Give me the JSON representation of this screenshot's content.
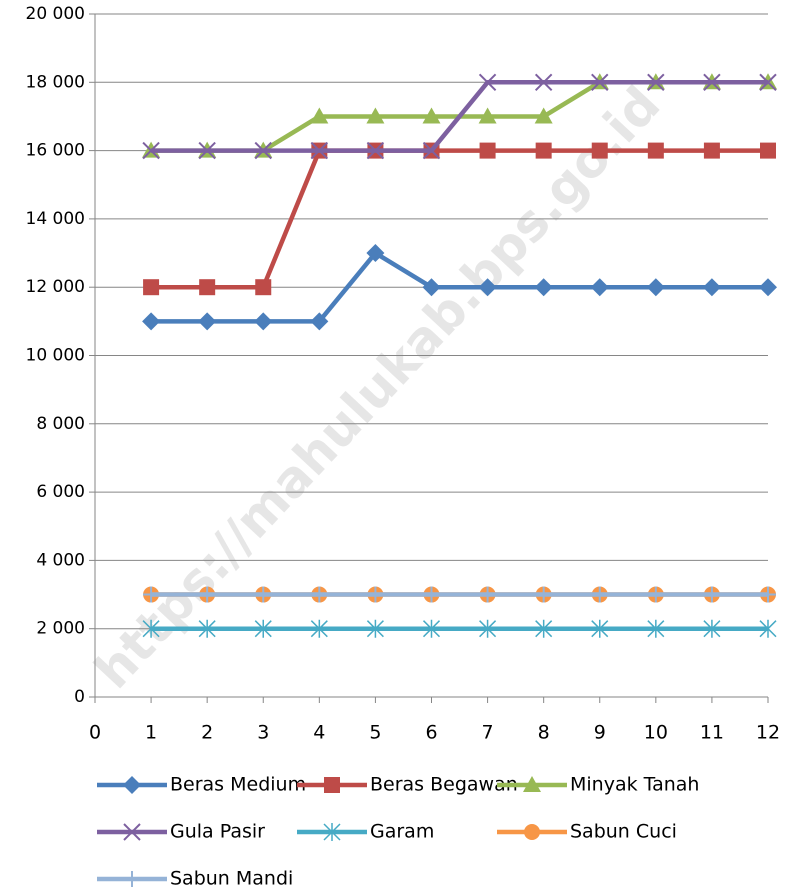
{
  "chart_data": {
    "type": "line",
    "watermark": "https://mahulukab.bps.go.id",
    "x": [
      1,
      2,
      3,
      4,
      5,
      6,
      7,
      8,
      9,
      10,
      11,
      12
    ],
    "xlim": [
      0,
      12
    ],
    "xticks": [
      0,
      1,
      2,
      3,
      4,
      5,
      6,
      7,
      8,
      9,
      10,
      11,
      12
    ],
    "ylim": [
      0,
      20000
    ],
    "yticks": [
      0,
      {
        "value": 2000,
        "label": "2 000"
      },
      {
        "value": 4000,
        "label": "4 000"
      },
      {
        "value": 6000,
        "label": "6 000"
      },
      {
        "value": 8000,
        "label": "8 000"
      },
      {
        "value": 10000,
        "label": "10 000"
      },
      {
        "value": 12000,
        "label": "12 000"
      },
      {
        "value": 14000,
        "label": "14 000"
      },
      {
        "value": 16000,
        "label": "16 000"
      },
      {
        "value": 18000,
        "label": "18 000"
      },
      {
        "value": 20000,
        "label": "20 000"
      }
    ],
    "grid": true,
    "legend": "bottom",
    "series": [
      {
        "name": "Beras Medium",
        "color": "#4a7ebb",
        "marker": "diamond",
        "values": [
          11000,
          11000,
          11000,
          11000,
          13000,
          12000,
          12000,
          12000,
          12000,
          12000,
          12000,
          12000
        ]
      },
      {
        "name": "Beras Begawan",
        "color": "#be4b48",
        "marker": "square",
        "values": [
          12000,
          12000,
          12000,
          16000,
          16000,
          16000,
          16000,
          16000,
          16000,
          16000,
          16000,
          16000
        ]
      },
      {
        "name": "Minyak Tanah",
        "color": "#98b954",
        "marker": "triangle",
        "values": [
          16000,
          16000,
          16000,
          17000,
          17000,
          17000,
          17000,
          17000,
          18000,
          18000,
          18000,
          18000
        ]
      },
      {
        "name": "Gula Pasir",
        "color": "#7d60a0",
        "marker": "x",
        "values": [
          16000,
          16000,
          16000,
          16000,
          16000,
          16000,
          18000,
          18000,
          18000,
          18000,
          18000,
          18000
        ]
      },
      {
        "name": "Garam",
        "color": "#46aac5",
        "marker": "star",
        "values": [
          2000,
          2000,
          2000,
          2000,
          2000,
          2000,
          2000,
          2000,
          2000,
          2000,
          2000,
          2000
        ]
      },
      {
        "name": "Sabun Cuci",
        "color": "#f79646",
        "marker": "circle",
        "values": [
          3000,
          3000,
          3000,
          3000,
          3000,
          3000,
          3000,
          3000,
          3000,
          3000,
          3000,
          3000
        ]
      },
      {
        "name": "Sabun Mandi",
        "color": "#95b3d7",
        "marker": "plus",
        "values": [
          3000,
          3000,
          3000,
          3000,
          3000,
          3000,
          3000,
          3000,
          3000,
          3000,
          3000,
          3000
        ]
      }
    ]
  }
}
